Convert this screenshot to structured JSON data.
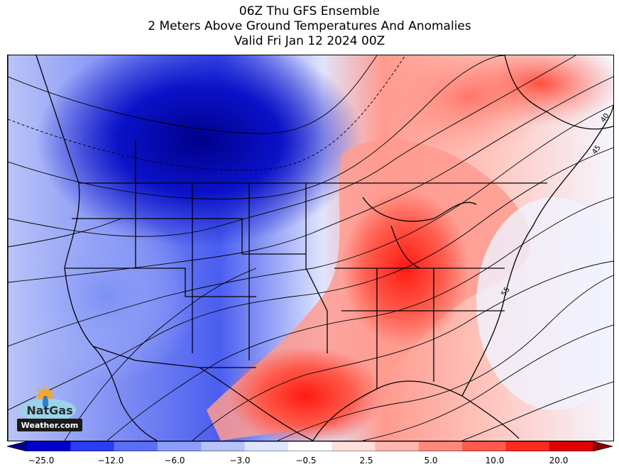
{
  "title": {
    "line1": "06Z Thu GFS Ensemble",
    "line2": "2 Meters Above Ground Temperatures And Anomalies",
    "line3": "Valid Fri Jan 12 2024 00Z"
  },
  "colorbar": {
    "ticks": [
      "−25.0",
      "−12.0",
      "−6.0",
      "−3.0",
      "−0.5",
      "2.5",
      "5.0",
      "10.0",
      "20.0"
    ],
    "colors": [
      "#00008b",
      "#0000cd",
      "#2a3df0",
      "#5a6ff5",
      "#8b9ef8",
      "#b7c4fb",
      "#dfe5fd",
      "#ffffff",
      "#ffe0dc",
      "#ffb8ae",
      "#ff8a7c",
      "#ff5c4d",
      "#ff2a1e",
      "#e00000",
      "#8b0000"
    ]
  },
  "contour_labels": [
    "40",
    "45",
    "55"
  ],
  "logo": {
    "line1": "NatGas",
    "line2": "Weather.com"
  },
  "colors": {
    "cold": "#1a2be0",
    "warm": "#ff3030",
    "border": "#000000"
  }
}
